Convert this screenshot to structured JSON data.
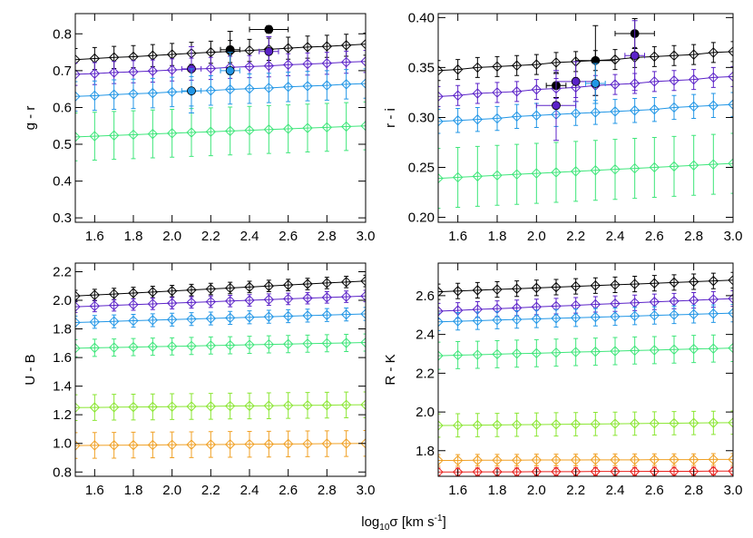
{
  "x_label": {
    "base": "log",
    "sub": "10",
    "main": "σ  [km s",
    "sup": "-1",
    "end": "]"
  },
  "chart_data": [
    {
      "type": "errorbar",
      "ylabel": "g - r",
      "x": [
        1.5,
        1.6,
        1.7,
        1.8,
        1.9,
        2.0,
        2.1,
        2.2,
        2.3,
        2.4,
        2.5,
        2.6,
        2.7,
        2.8,
        2.9,
        3.0
      ],
      "xlim": [
        1.5,
        3.0
      ],
      "xticks": [
        1.6,
        1.8,
        {
          "value": 2.0,
          "label": "2.0"
        },
        2.2,
        2.4,
        2.6,
        2.8,
        {
          "value": 3.0,
          "label": "3.0"
        }
      ],
      "ylim": [
        0.288,
        0.855
      ],
      "yticks": [
        0.3,
        0.4,
        0.5,
        0.6,
        0.7,
        0.8
      ],
      "series": [
        {
          "color": "#000000",
          "error": 0.03,
          "values": [
            0.73,
            0.733,
            0.736,
            0.738,
            0.741,
            0.744,
            0.747,
            0.75,
            0.752,
            0.755,
            0.758,
            0.761,
            0.764,
            0.766,
            0.769,
            0.772
          ]
        },
        {
          "color": "#5b22c8",
          "error": 0.03,
          "values": [
            0.69,
            0.692,
            0.695,
            0.697,
            0.699,
            0.702,
            0.704,
            0.706,
            0.709,
            0.711,
            0.713,
            0.716,
            0.718,
            0.72,
            0.723,
            0.725
          ]
        },
        {
          "color": "#2196e6",
          "error": 0.04,
          "values": [
            0.63,
            0.632,
            0.635,
            0.637,
            0.639,
            0.642,
            0.644,
            0.646,
            0.649,
            0.651,
            0.653,
            0.656,
            0.658,
            0.66,
            0.663,
            0.665
          ]
        },
        {
          "color": "#3ee67a",
          "error": 0.065,
          "values": [
            0.52,
            0.522,
            0.524,
            0.526,
            0.528,
            0.53,
            0.532,
            0.534,
            0.536,
            0.538,
            0.54,
            0.542,
            0.544,
            0.546,
            0.548,
            0.55
          ]
        }
      ],
      "observed": {
        "x": [
          2.5,
          2.3,
          2.1,
          2.5,
          2.1,
          2.3
        ],
        "y": [
          0.812,
          0.757,
          0.705,
          0.752,
          0.645,
          0.7
        ],
        "xerr": [
          0.1,
          0.05,
          0.05,
          0.05,
          0.05,
          0.05
        ],
        "yerr": [
          0.01,
          0.05,
          0.06,
          0.04,
          0.06,
          0.05
        ],
        "colors": [
          "#000000",
          "#000000",
          "#5b22c8",
          "#5b22c8",
          "#2196e6",
          "#2196e6"
        ]
      }
    },
    {
      "type": "errorbar",
      "ylabel": "r - i",
      "x": [
        1.5,
        1.6,
        1.7,
        1.8,
        1.9,
        2.0,
        2.1,
        2.2,
        2.3,
        2.4,
        2.5,
        2.6,
        2.7,
        2.8,
        2.9,
        3.0
      ],
      "xlim": [
        1.5,
        3.0
      ],
      "xticks": [
        1.6,
        1.8,
        {
          "value": 2.0,
          "label": "2.0"
        },
        2.2,
        2.4,
        2.6,
        2.8,
        {
          "value": 3.0,
          "label": "3.0"
        }
      ],
      "ylim": [
        0.195,
        0.404
      ],
      "yticks": [
        {
          "value": 0.2,
          "label": "0.20"
        },
        0.25,
        {
          "value": 0.3,
          "label": "0.30"
        },
        0.35,
        {
          "value": 0.4,
          "label": "0.40"
        }
      ],
      "series": [
        {
          "color": "#000000",
          "error": 0.01,
          "values": [
            0.347,
            0.348,
            0.35,
            0.351,
            0.352,
            0.353,
            0.355,
            0.356,
            0.357,
            0.358,
            0.36,
            0.361,
            0.362,
            0.363,
            0.365,
            0.366
          ]
        },
        {
          "color": "#5b22c8",
          "error": 0.01,
          "values": [
            0.321,
            0.322,
            0.324,
            0.325,
            0.326,
            0.328,
            0.329,
            0.33,
            0.332,
            0.333,
            0.334,
            0.336,
            0.337,
            0.338,
            0.34,
            0.341
          ]
        },
        {
          "color": "#2196e6",
          "error": 0.012,
          "values": [
            0.296,
            0.297,
            0.298,
            0.299,
            0.301,
            0.302,
            0.303,
            0.304,
            0.305,
            0.306,
            0.307,
            0.308,
            0.31,
            0.311,
            0.312,
            0.313
          ]
        },
        {
          "color": "#3ee67a",
          "error": 0.03,
          "values": [
            0.239,
            0.24,
            0.241,
            0.242,
            0.243,
            0.244,
            0.245,
            0.246,
            0.247,
            0.248,
            0.249,
            0.25,
            0.251,
            0.252,
            0.253,
            0.254
          ]
        }
      ],
      "observed": {
        "x": [
          2.1,
          2.3,
          2.5,
          2.2,
          2.5,
          2.1,
          2.3
        ],
        "y": [
          0.332,
          0.357,
          0.384,
          0.336,
          0.362,
          0.312,
          0.334
        ],
        "xerr": [
          0.05,
          0.1,
          0.1,
          0.1,
          0.05,
          0.1,
          0.05
        ],
        "yerr": [
          0.012,
          0.035,
          0.015,
          0.02,
          0.035,
          0.035,
          0.02
        ],
        "colors": [
          "#000000",
          "#000000",
          "#000000",
          "#5b22c8",
          "#5b22c8",
          "#5b22c8",
          "#2196e6"
        ]
      }
    },
    {
      "type": "errorbar",
      "ylabel": "U - B",
      "x": [
        1.5,
        1.6,
        1.7,
        1.8,
        1.9,
        2.0,
        2.1,
        2.2,
        2.3,
        2.4,
        2.5,
        2.6,
        2.7,
        2.8,
        2.9,
        3.0
      ],
      "xlim": [
        1.5,
        3.0
      ],
      "xticks": [
        1.6,
        1.8,
        {
          "value": 2.0,
          "label": "2.0"
        },
        2.2,
        2.4,
        2.6,
        2.8,
        {
          "value": 3.0,
          "label": "3.0"
        }
      ],
      "ylim": [
        0.77,
        2.26
      ],
      "yticks": [
        0.8,
        {
          "value": 1.0,
          "label": "1.0"
        },
        1.2,
        1.4,
        1.6,
        1.8,
        {
          "value": 2.0,
          "label": "2.0"
        },
        2.2
      ],
      "series": [
        {
          "color": "#000000",
          "error": 0.04,
          "values": [
            2.03,
            2.037,
            2.044,
            2.051,
            2.058,
            2.065,
            2.072,
            2.079,
            2.086,
            2.093,
            2.1,
            2.107,
            2.114,
            2.121,
            2.128,
            2.135
          ]
        },
        {
          "color": "#5b22c8",
          "error": 0.04,
          "values": [
            1.955,
            1.96,
            1.965,
            1.97,
            1.975,
            1.98,
            1.985,
            1.99,
            1.995,
            2.0,
            2.005,
            2.01,
            2.015,
            2.02,
            2.025,
            2.03
          ]
        },
        {
          "color": "#2196e6",
          "error": 0.045,
          "values": [
            1.845,
            1.849,
            1.853,
            1.857,
            1.861,
            1.865,
            1.869,
            1.873,
            1.877,
            1.881,
            1.885,
            1.889,
            1.893,
            1.897,
            1.901,
            1.905
          ]
        },
        {
          "color": "#3ee67a",
          "error": 0.06,
          "values": [
            1.665,
            1.668,
            1.67,
            1.673,
            1.676,
            1.678,
            1.681,
            1.684,
            1.686,
            1.689,
            1.692,
            1.694,
            1.697,
            1.7,
            1.702,
            1.705
          ]
        },
        {
          "color": "#8ae632",
          "error": 0.09,
          "values": [
            1.25,
            1.251,
            1.253,
            1.254,
            1.255,
            1.257,
            1.258,
            1.259,
            1.261,
            1.262,
            1.263,
            1.265,
            1.266,
            1.267,
            1.269,
            1.27
          ]
        },
        {
          "color": "#f0a024",
          "error": 0.09,
          "values": [
            0.985,
            0.986,
            0.987,
            0.988,
            0.989,
            0.99,
            0.991,
            0.992,
            0.993,
            0.994,
            0.995,
            0.996,
            0.997,
            0.998,
            0.999,
            1.0
          ]
        }
      ]
    },
    {
      "type": "errorbar",
      "ylabel": "R - K",
      "x": [
        1.5,
        1.6,
        1.7,
        1.8,
        1.9,
        2.0,
        2.1,
        2.2,
        2.3,
        2.4,
        2.5,
        2.6,
        2.7,
        2.8,
        2.9,
        3.0
      ],
      "xlim": [
        1.5,
        3.0
      ],
      "xticks": [
        1.6,
        1.8,
        {
          "value": 2.0,
          "label": "2.0"
        },
        2.2,
        2.4,
        2.6,
        2.8,
        {
          "value": 3.0,
          "label": "3.0"
        }
      ],
      "ylim": [
        1.668,
        2.768
      ],
      "yticks": [
        1.8,
        {
          "value": 2.0,
          "label": "2.0"
        },
        2.2,
        2.4,
        2.6
      ],
      "series": [
        {
          "color": "#000000",
          "error": 0.04,
          "values": [
            2.62,
            2.624,
            2.628,
            2.632,
            2.636,
            2.64,
            2.644,
            2.648,
            2.652,
            2.656,
            2.66,
            2.664,
            2.668,
            2.672,
            2.676,
            2.68
          ]
        },
        {
          "color": "#5b22c8",
          "error": 0.04,
          "values": [
            2.52,
            2.524,
            2.529,
            2.533,
            2.537,
            2.542,
            2.546,
            2.55,
            2.555,
            2.559,
            2.563,
            2.568,
            2.572,
            2.576,
            2.581,
            2.585
          ]
        },
        {
          "color": "#2196e6",
          "error": 0.045,
          "values": [
            2.465,
            2.468,
            2.471,
            2.474,
            2.477,
            2.48,
            2.483,
            2.486,
            2.489,
            2.492,
            2.495,
            2.498,
            2.501,
            2.504,
            2.507,
            2.51
          ]
        },
        {
          "color": "#3ee67a",
          "error": 0.07,
          "values": [
            2.29,
            2.293,
            2.295,
            2.298,
            2.301,
            2.303,
            2.306,
            2.309,
            2.311,
            2.314,
            2.317,
            2.319,
            2.322,
            2.325,
            2.327,
            2.33
          ]
        },
        {
          "color": "#8ae632",
          "error": 0.06,
          "values": [
            1.93,
            1.931,
            1.932,
            1.933,
            1.934,
            1.935,
            1.936,
            1.937,
            1.938,
            1.939,
            1.94,
            1.941,
            1.942,
            1.943,
            1.944,
            1.945
          ]
        },
        {
          "color": "#f0a024",
          "error": 0.03,
          "values": [
            1.75,
            1.75,
            1.751,
            1.751,
            1.751,
            1.752,
            1.752,
            1.752,
            1.753,
            1.753,
            1.753,
            1.754,
            1.754,
            1.754,
            1.755,
            1.755
          ]
        },
        {
          "color": "#e8201c",
          "error": 0.02,
          "values": [
            1.69,
            1.69,
            1.691,
            1.691,
            1.691,
            1.692,
            1.692,
            1.692,
            1.693,
            1.693,
            1.693,
            1.694,
            1.694,
            1.694,
            1.695,
            1.695
          ]
        }
      ]
    }
  ]
}
